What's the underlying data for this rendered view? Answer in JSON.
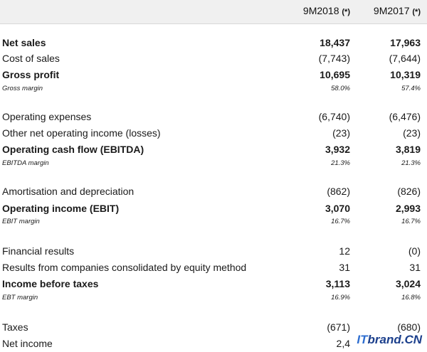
{
  "header": {
    "col1": "9M2018",
    "col2": "9M2017",
    "marker": "(*)"
  },
  "rows": [
    {
      "label": "Net sales",
      "v1": "18,437",
      "v2": "17,963",
      "style": "bold"
    },
    {
      "label": "Cost of sales",
      "v1": "(7,743)",
      "v2": "(7,644)",
      "style": "normal"
    },
    {
      "label": "Gross profit",
      "v1": "10,695",
      "v2": "10,319",
      "style": "bold"
    },
    {
      "label": "Gross margin",
      "v1": "58.0%",
      "v2": "57.4%",
      "style": "margin"
    },
    {
      "label": "Operating expenses",
      "v1": "(6,740)",
      "v2": "(6,476)",
      "style": "normal"
    },
    {
      "label": "Other net operating income (losses)",
      "v1": "(23)",
      "v2": "(23)",
      "style": "normal"
    },
    {
      "label": "Operating cash flow (EBITDA)",
      "v1": "3,932",
      "v2": "3,819",
      "style": "bold"
    },
    {
      "label": "EBITDA margin",
      "v1": "21.3%",
      "v2": "21.3%",
      "style": "margin"
    },
    {
      "label": "Amortisation and depreciation",
      "v1": "(862)",
      "v2": "(826)",
      "style": "normal"
    },
    {
      "label": "Operating income (EBIT)",
      "v1": "3,070",
      "v2": "2,993",
      "style": "bold"
    },
    {
      "label": "EBIT margin",
      "v1": "16.7%",
      "v2": "16.7%",
      "style": "margin"
    },
    {
      "label": "Financial results",
      "v1": "12",
      "v2": "(0)",
      "style": "normal"
    },
    {
      "label": "Results from companies consolidated by equity method",
      "v1": "31",
      "v2": "31",
      "style": "normal"
    },
    {
      "label": "Income before taxes",
      "v1": "3,113",
      "v2": "3,024",
      "style": "bold"
    },
    {
      "label": "EBT margin",
      "v1": "16.9%",
      "v2": "16.8%",
      "style": "margin"
    },
    {
      "label": "Taxes",
      "v1": "(671)",
      "v2": "(680)",
      "style": "normal"
    },
    {
      "label": "Net income",
      "v1": "2,4",
      "v2": "",
      "style": "normal"
    }
  ],
  "watermark": {
    "prefix": "IT",
    "rest": "brand.CN"
  }
}
